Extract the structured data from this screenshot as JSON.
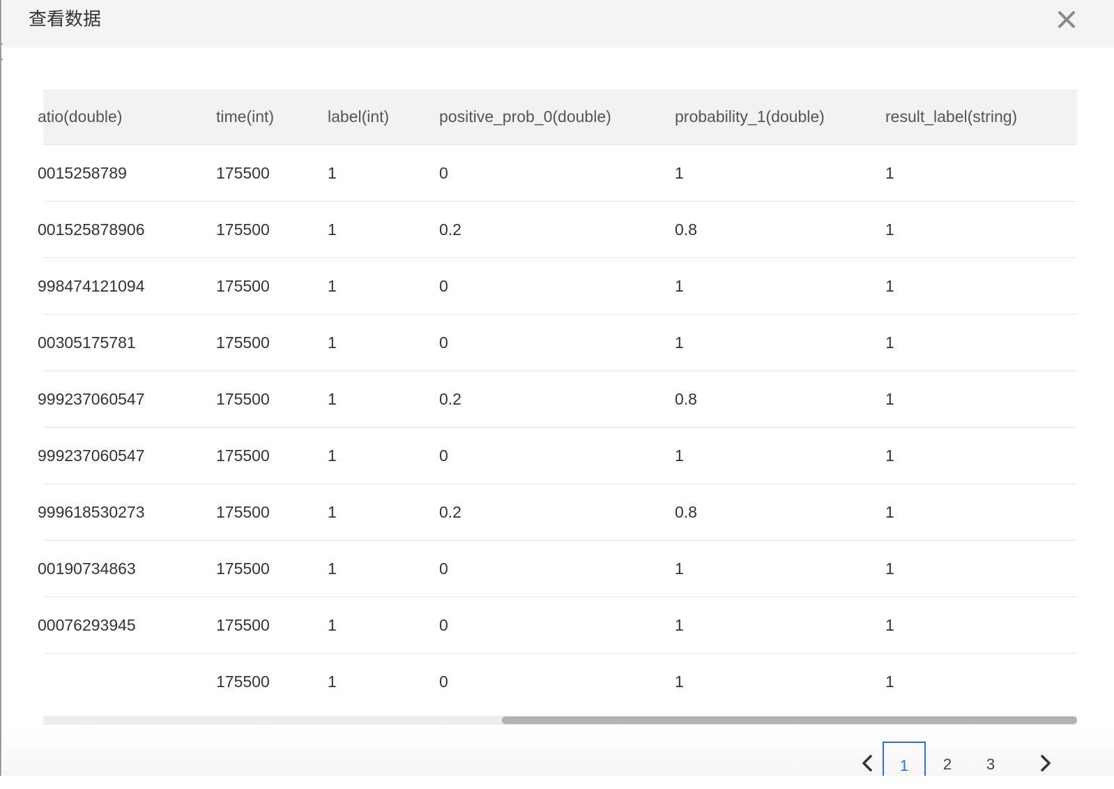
{
  "dialog": {
    "title": "查看数据",
    "close_icon": "close-icon"
  },
  "table": {
    "columns": [
      "atio(double)",
      "time(int)",
      "label(int)",
      "positive_prob_0(double)",
      "probability_1(double)",
      "result_label(string)"
    ],
    "rows": [
      [
        "0015258789",
        "175500",
        "1",
        "0",
        "1",
        "1"
      ],
      [
        "001525878906",
        "175500",
        "1",
        "0.2",
        "0.8",
        "1"
      ],
      [
        "998474121094",
        "175500",
        "1",
        "0",
        "1",
        "1"
      ],
      [
        "00305175781",
        "175500",
        "1",
        "0",
        "1",
        "1"
      ],
      [
        "999237060547",
        "175500",
        "1",
        "0.2",
        "0.8",
        "1"
      ],
      [
        "999237060547",
        "175500",
        "1",
        "0",
        "1",
        "1"
      ],
      [
        "999618530273",
        "175500",
        "1",
        "0.2",
        "0.8",
        "1"
      ],
      [
        "00190734863",
        "175500",
        "1",
        "0",
        "1",
        "1"
      ],
      [
        "00076293945",
        "175500",
        "1",
        "0",
        "1",
        "1"
      ],
      [
        "",
        "175500",
        "1",
        "0",
        "1",
        "1"
      ]
    ]
  },
  "pagination": {
    "prev_icon": "chevron-left-icon",
    "next_icon": "chevron-right-icon",
    "pages": [
      "1",
      "2",
      "3"
    ],
    "current_page": "1"
  },
  "colors": {
    "header_bg": "#f4f4f4",
    "table_header_bg": "#f2f2f2",
    "active_page": "#2f6fd6",
    "scroll_thumb": "#b3b3b3"
  }
}
